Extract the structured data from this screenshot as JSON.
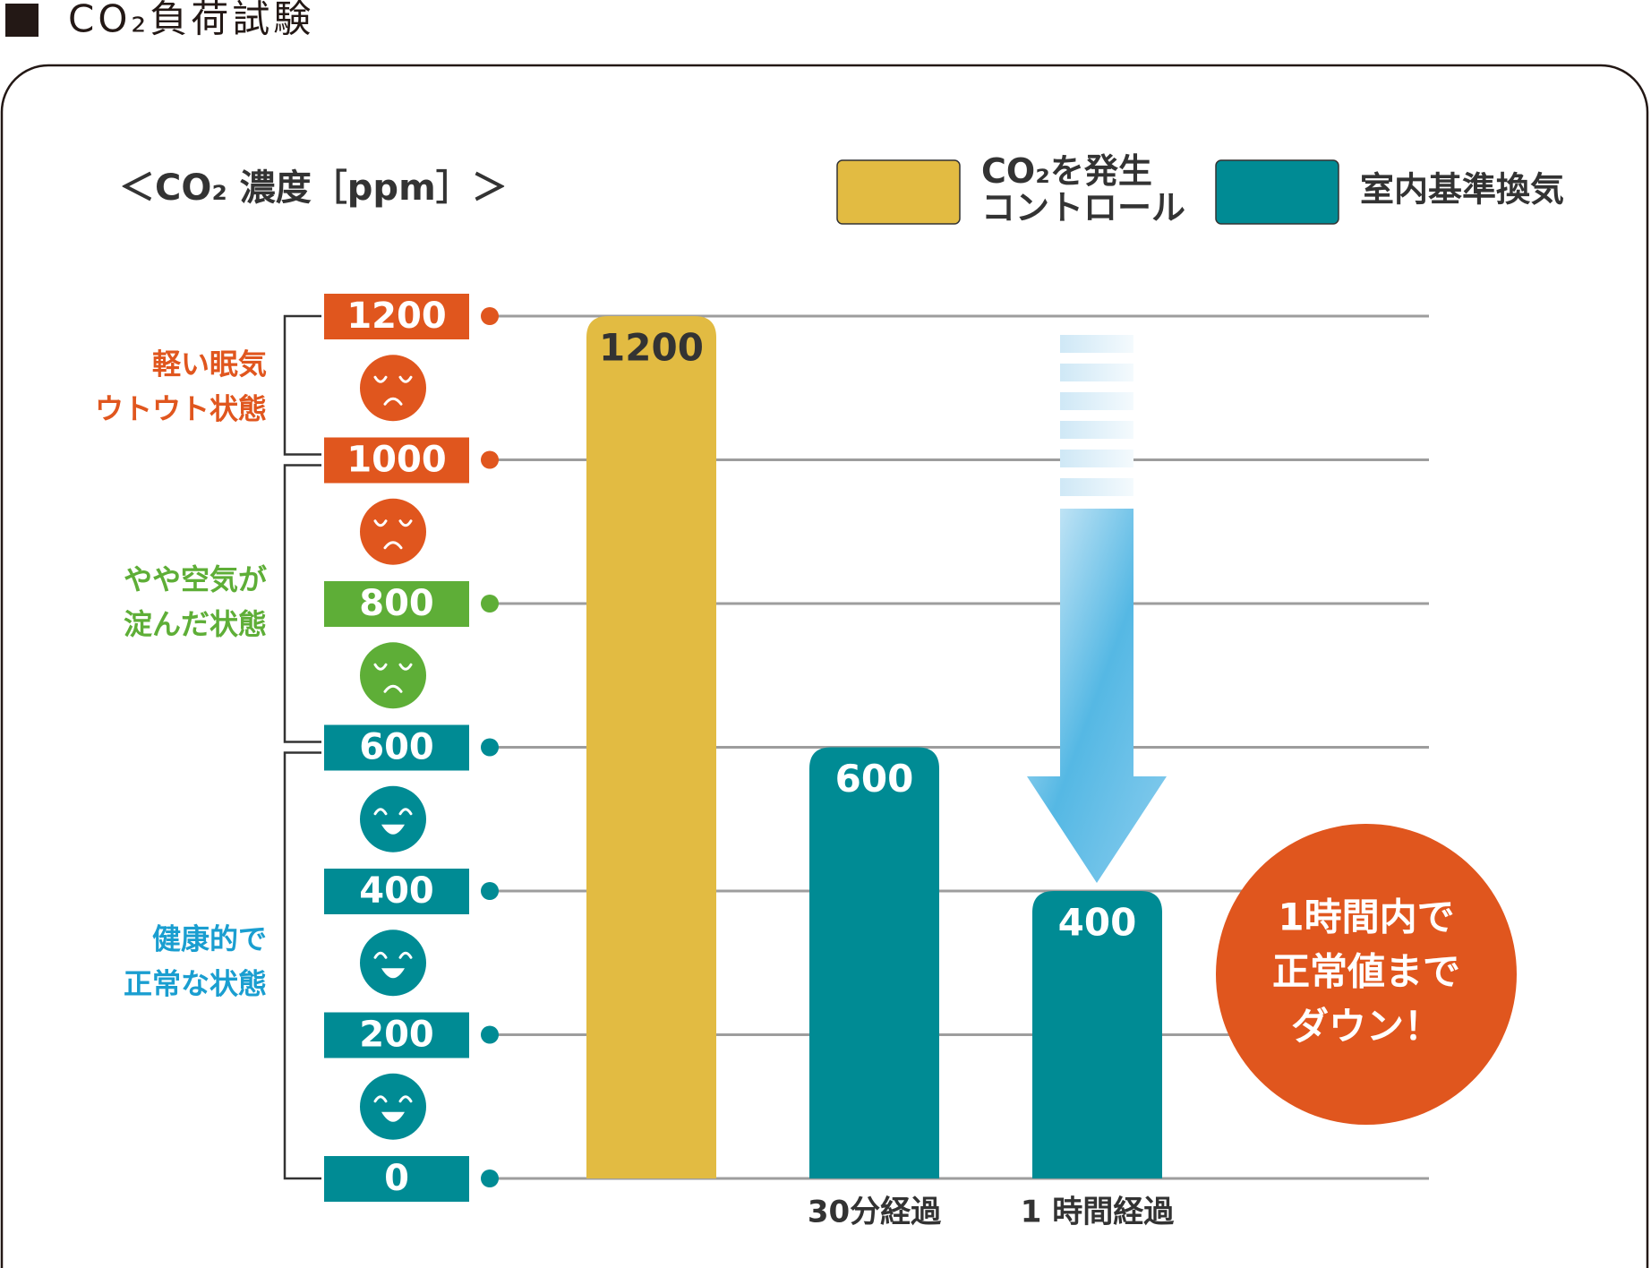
{
  "title": "CO₂負荷試験",
  "chart_data": {
    "type": "bar",
    "subtitle": "＜CO₂ 濃度［ppm］＞",
    "categories": [
      null,
      "30分経過",
      "1 時間経過"
    ],
    "series": [
      {
        "name": [
          "CO₂を発生",
          "コントロール"
        ],
        "color": "#e2bb42",
        "label_color": "#333333",
        "values": [
          1200,
          null,
          null
        ]
      },
      {
        "name": [
          "室内基準換気"
        ],
        "color": "#008b94",
        "label_color": "#ffffff",
        "values": [
          null,
          600,
          400
        ]
      }
    ],
    "ylim": [
      0,
      1200
    ],
    "yticks": [
      0,
      200,
      400,
      600,
      800,
      1000,
      1200
    ],
    "ytick_colors": [
      "#008b94",
      "#008b94",
      "#008b94",
      "#008b94",
      "#5eae37",
      "#e0561e",
      "#e0561e"
    ],
    "grid": true,
    "zones": [
      {
        "label": [
          "軽い眠気",
          "ウトウト状態"
        ],
        "range": [
          1000,
          1200
        ],
        "color": "#e0561e"
      },
      {
        "label": [
          "やや空気が",
          "淀んだ状態"
        ],
        "range": [
          600,
          1000
        ],
        "color": "#5eae37"
      },
      {
        "label": [
          "健康的で",
          "正常な状態"
        ],
        "range": [
          0,
          600
        ],
        "color": "#1a9ed0"
      }
    ],
    "annotation": {
      "lines": [
        "1時間内で",
        "正常値まで",
        "ダウン！"
      ],
      "color": "#e0561e"
    }
  }
}
